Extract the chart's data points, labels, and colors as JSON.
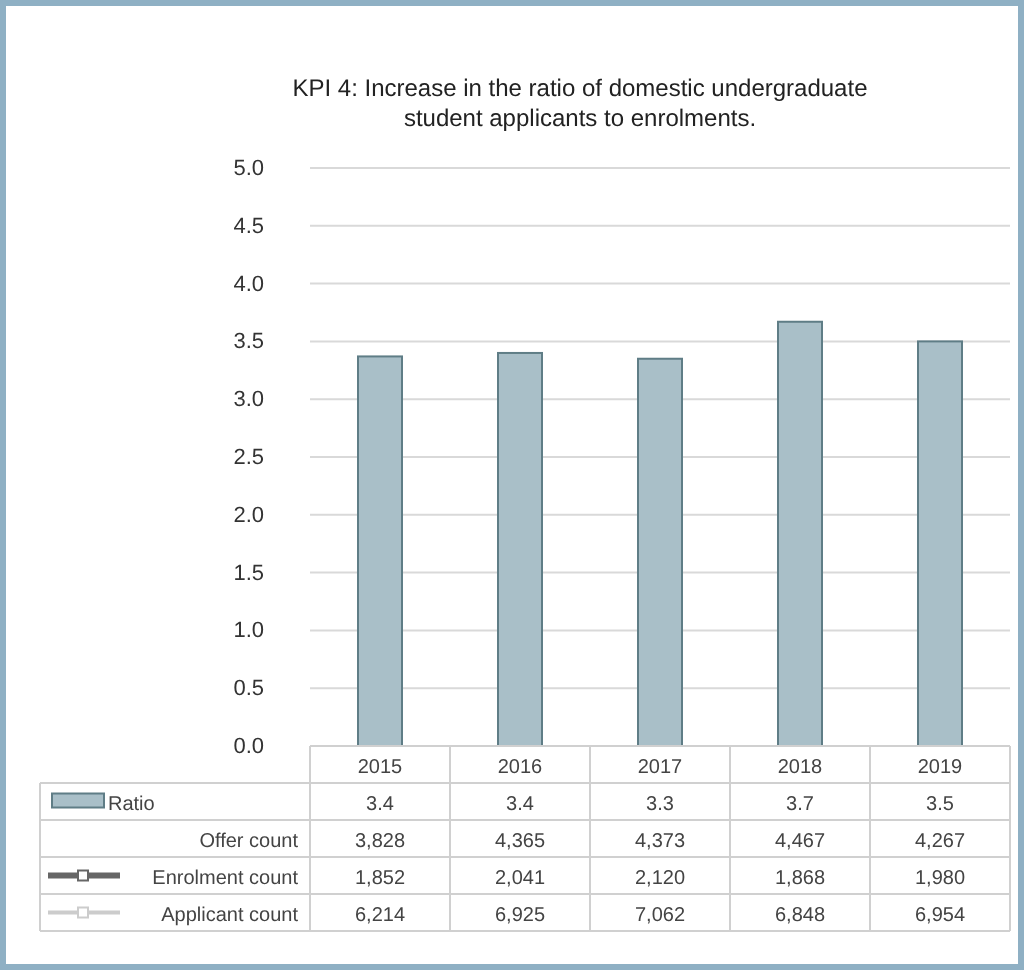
{
  "chart_data": {
    "type": "bar",
    "title": "KPI 4: Increase in the ratio of domestic undergraduate student applicants to enrolments.",
    "categories": [
      "2015",
      "2016",
      "2017",
      "2018",
      "2019"
    ],
    "series": [
      {
        "name": "Ratio",
        "color": "#a9bfc8",
        "values": [
          3.37,
          3.4,
          3.35,
          3.67,
          3.5
        ],
        "value_labels": [
          "3.4",
          "3.4",
          "3.3",
          "3.7",
          "3.5"
        ]
      }
    ],
    "ylim": [
      0,
      5
    ],
    "yticks": [
      {
        "value": 0,
        "label": "0.0"
      },
      {
        "value": 0.5,
        "label": "0.5"
      },
      {
        "value": 1,
        "label": "1.0"
      },
      {
        "value": 1.5,
        "label": "1.5"
      },
      {
        "value": 2,
        "label": "2.0"
      },
      {
        "value": 2.5,
        "label": "2.5"
      },
      {
        "value": 3,
        "label": "3.0"
      },
      {
        "value": 3.5,
        "label": "3.5"
      },
      {
        "value": 4,
        "label": "4.0"
      },
      {
        "value": 4.5,
        "label": "4.5"
      },
      {
        "value": 5,
        "label": "5.0"
      }
    ],
    "grid": "y",
    "annotations": [
      "Offer count",
      "3,828",
      "4,365",
      "4,373",
      "4,467",
      "4,267",
      "Enrolment count",
      "1,852",
      "2,041",
      "2,120",
      "1,868",
      "1,980",
      "Applicant count",
      "6,214",
      "6,925",
      "7,062",
      "6,848",
      "6,954"
    ]
  }
}
